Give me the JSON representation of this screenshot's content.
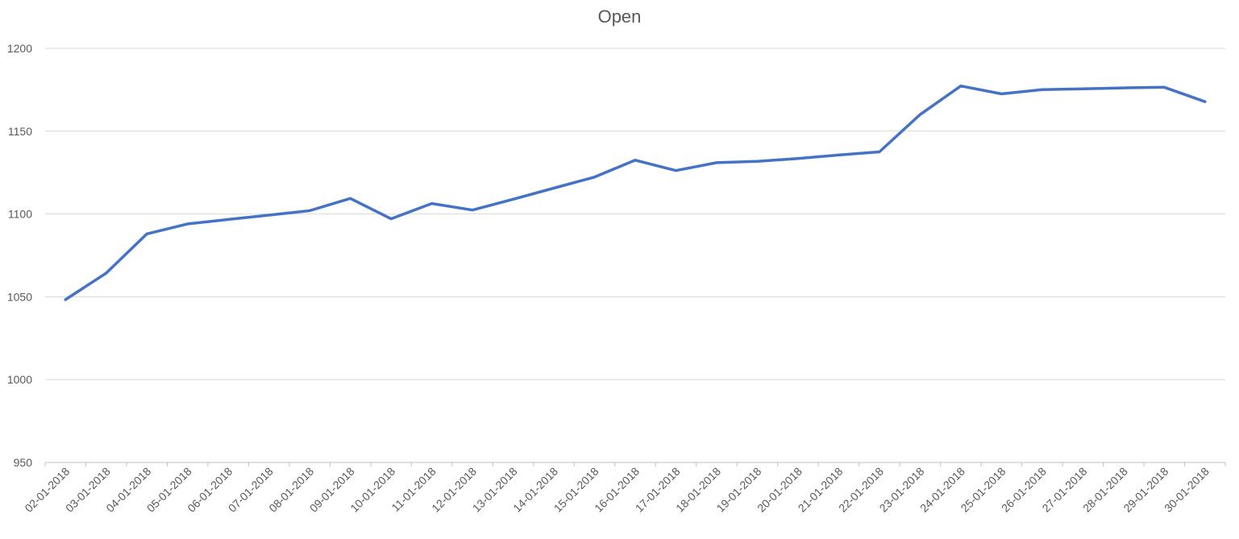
{
  "chart_data": {
    "type": "line",
    "title": "Open",
    "xlabel": "",
    "ylabel": "",
    "ylim": [
      950,
      1200
    ],
    "yticks": [
      950,
      1000,
      1050,
      1100,
      1150,
      1200
    ],
    "grid": true,
    "legend": "none",
    "line_color": "#4472C4",
    "categories": [
      "02-01-2018",
      "03-01-2018",
      "04-01-2018",
      "05-01-2018",
      "06-01-2018",
      "07-01-2018",
      "08-01-2018",
      "09-01-2018",
      "10-01-2018",
      "11-01-2018",
      "12-01-2018",
      "13-01-2018",
      "14-01-2018",
      "15-01-2018",
      "16-01-2018",
      "17-01-2018",
      "18-01-2018",
      "19-01-2018",
      "20-01-2018",
      "21-01-2018",
      "22-01-2018",
      "23-01-2018",
      "24-01-2018",
      "25-01-2018",
      "26-01-2018",
      "27-01-2018",
      "28-01-2018",
      "29-01-2018",
      "30-01-2018"
    ],
    "series": [
      {
        "values": [
          1048.3,
          1064.3,
          1088.0,
          1094.0,
          1096.7,
          1099.3,
          1102.0,
          1109.4,
          1097.1,
          1106.3,
          1102.4,
          1108.9,
          1115.6,
          1122.3,
          1132.5,
          1126.2,
          1131.0,
          1131.8,
          1133.5,
          1135.6,
          1137.5,
          1160.0,
          1177.3,
          1172.5,
          1175.1,
          1175.6,
          1176.1,
          1176.5,
          1167.8
        ]
      }
    ]
  }
}
